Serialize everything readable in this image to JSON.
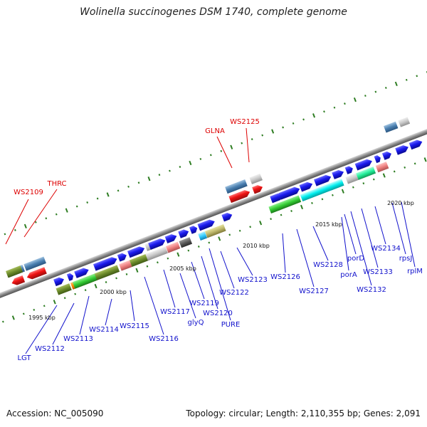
{
  "title": "Wolinella succinogenes DSM 1740, complete genome",
  "footer": {
    "accession": "Accession: NC_005090",
    "summary": "Topology: circular; Length: 2,110,355 bp; Genes: 2,091"
  },
  "ticks": [
    "1995 kbp",
    "2000 kbp",
    "2005 kbp",
    "2010 kbp",
    "2015 kbp",
    "2020 kbp"
  ],
  "labels_red": [
    "WS2109",
    "THRC",
    "GLNA",
    "WS2125"
  ],
  "labels_blue": [
    "LGT",
    "WS2112",
    "WS2113",
    "WS2114",
    "WS2115",
    "WS2116",
    "WS2117",
    "glyQ",
    "WS2119",
    "WS2120",
    "PURE",
    "WS2122",
    "WS2123",
    "WS2126",
    "WS2127",
    "WS2128",
    "porA",
    "porD",
    "WS2132",
    "WS2133",
    "WS2134",
    "rpsJ",
    "rplM"
  ],
  "colors": {
    "forward_strand": "#1a1aee",
    "forward_alt": "#00eeee",
    "reverse_strand": "#ee1111",
    "rna_green": "#33cc33",
    "label_red": "#dd0000",
    "label_blue": "#1111cc",
    "axis": "#8a8a8a",
    "dots": "#2e7d22"
  }
}
